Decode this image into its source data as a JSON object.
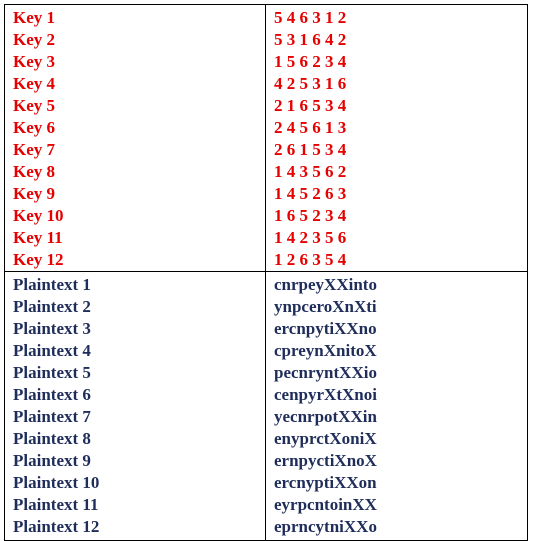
{
  "keys": [
    {
      "label": "Key 1",
      "value": "5 4 6 3 1 2"
    },
    {
      "label": "Key 2",
      "value": "5 3 1 6 4 2"
    },
    {
      "label": "Key 3",
      "value": "1 5 6 2 3 4"
    },
    {
      "label": "Key 4",
      "value": "4 2 5 3 1 6"
    },
    {
      "label": "Key 5",
      "value": "2 1 6 5 3 4"
    },
    {
      "label": "Key 6",
      "value": "2 4 5 6 1 3"
    },
    {
      "label": "Key 7",
      "value": "2 6 1 5 3 4"
    },
    {
      "label": "Key 8",
      "value": "1 4 3 5 6 2"
    },
    {
      "label": "Key 9",
      "value": "1 4 5 2 6 3"
    },
    {
      "label": "Key 10",
      "value": "1 6 5 2 3 4"
    },
    {
      "label": "Key 11",
      "value": "1 4 2 3 5 6"
    },
    {
      "label": "Key 12",
      "value": "1 2 6 3 5 4"
    }
  ],
  "plaintexts": [
    {
      "label": "Plaintext 1",
      "value": "cnrpeyXXinto"
    },
    {
      "label": "Plaintext 2",
      "value": "ynpceroXnXti"
    },
    {
      "label": "Plaintext 3",
      "value": "ercnpytiXXno"
    },
    {
      "label": "Plaintext 4",
      "value": "cpreynXnitoX"
    },
    {
      "label": "Plaintext 5",
      "value": "pecnryntXXio"
    },
    {
      "label": "Plaintext 6",
      "value": "cenpyrXtXnoi"
    },
    {
      "label": "Plaintext 7",
      "value": "yecnrpotXXin"
    },
    {
      "label": "Plaintext 8",
      "value": "enyprctXoniX"
    },
    {
      "label": "Plaintext 9",
      "value": "ernpyctiXnoX"
    },
    {
      "label": "Plaintext 10",
      "value": "ercnyptiXXon"
    },
    {
      "label": "Plaintext 11",
      "value": "eyrpcntoinXX"
    },
    {
      "label": "Plaintext 12",
      "value": "eprncytniXXo"
    }
  ],
  "colors": {
    "key_text": "#e60000",
    "plaintext_text": "#1f2d5a",
    "border": "#000000"
  }
}
